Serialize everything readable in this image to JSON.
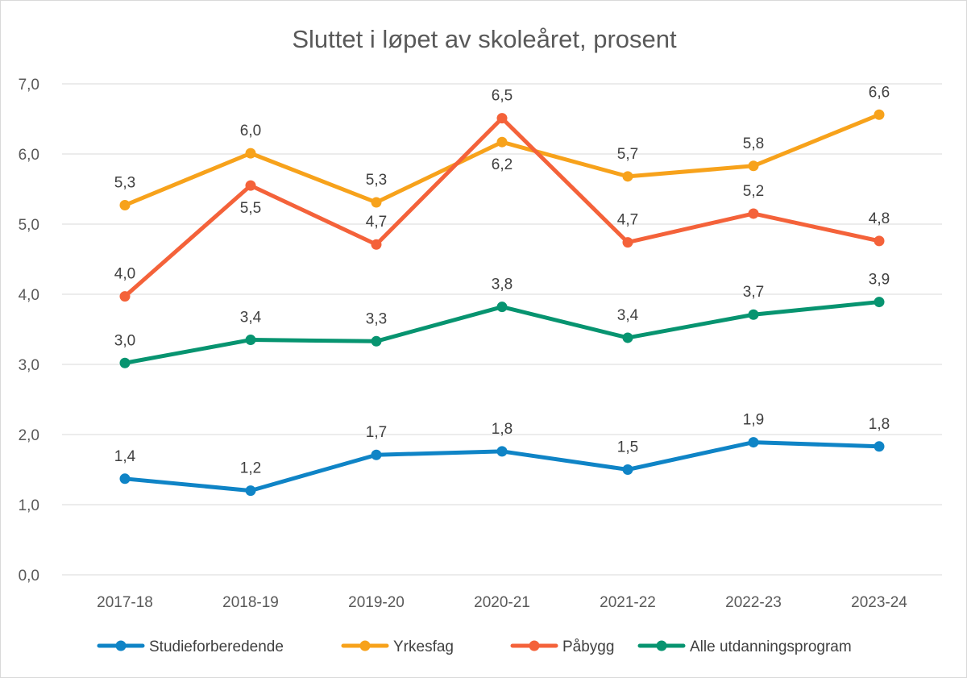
{
  "chart_data": {
    "type": "line",
    "title": "Sluttet i løpet av skoleåret, prosent",
    "xlabel": "",
    "ylabel": "",
    "categories": [
      "2017-18",
      "2018-19",
      "2019-20",
      "2020-21",
      "2021-22",
      "2022-23",
      "2023-24"
    ],
    "ylim": [
      0,
      7
    ],
    "yticks": [
      0,
      1,
      2,
      3,
      4,
      5,
      6,
      7
    ],
    "ytick_labels": [
      "0,0",
      "1,0",
      "2,0",
      "3,0",
      "4,0",
      "5,0",
      "6,0",
      "7,0"
    ],
    "grid": true,
    "legend_position": "bottom",
    "series": [
      {
        "name": "Studieforberedende",
        "color": "#0f84c6",
        "values": [
          1.37,
          1.2,
          1.71,
          1.76,
          1.5,
          1.89,
          1.83
        ],
        "labels": [
          "1,4",
          "1,2",
          "1,7",
          "1,8",
          "1,5",
          "1,9",
          "1,8"
        ],
        "label_side": [
          "above",
          "above",
          "above",
          "above",
          "above",
          "above",
          "above"
        ]
      },
      {
        "name": "Yrkesfag",
        "color": "#f7a21b",
        "values": [
          5.27,
          6.01,
          5.31,
          6.17,
          5.68,
          5.83,
          6.56
        ],
        "labels": [
          "5,3",
          "6,0",
          "5,3",
          "6,2",
          "5,7",
          "5,8",
          "6,6"
        ],
        "label_side": [
          "above",
          "above",
          "above",
          "below",
          "above",
          "above",
          "above"
        ]
      },
      {
        "name": "Påbygg",
        "color": "#f4623a",
        "values": [
          3.97,
          5.55,
          4.71,
          6.51,
          4.74,
          5.15,
          4.76
        ],
        "labels": [
          "4,0",
          "5,5",
          "4,7",
          "6,5",
          "4,7",
          "5,2",
          "4,8"
        ],
        "label_side": [
          "above",
          "below",
          "above",
          "above",
          "above",
          "above",
          "above"
        ]
      },
      {
        "name": "Alle utdanningsprogram",
        "color": "#079470",
        "values": [
          3.02,
          3.35,
          3.33,
          3.82,
          3.38,
          3.71,
          3.89
        ],
        "labels": [
          "3,0",
          "3,4",
          "3,3",
          "3,8",
          "3,4",
          "3,7",
          "3,9"
        ],
        "label_side": [
          "above",
          "above",
          "above",
          "above",
          "above",
          "above",
          "above"
        ]
      }
    ]
  }
}
